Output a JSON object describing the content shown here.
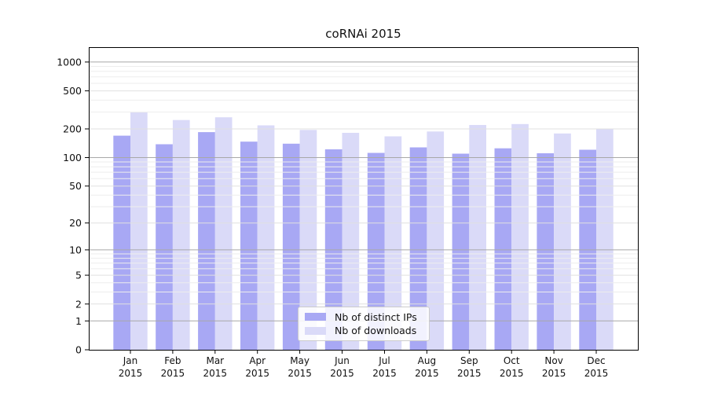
{
  "figure": {
    "background": "#ffffff"
  },
  "chart_data": {
    "type": "bar",
    "title": "coRNAi 2015",
    "categories": [
      {
        "month": "Jan",
        "year": "2015"
      },
      {
        "month": "Feb",
        "year": "2015"
      },
      {
        "month": "Mar",
        "year": "2015"
      },
      {
        "month": "Apr",
        "year": "2015"
      },
      {
        "month": "May",
        "year": "2015"
      },
      {
        "month": "Jun",
        "year": "2015"
      },
      {
        "month": "Jul",
        "year": "2015"
      },
      {
        "month": "Aug",
        "year": "2015"
      },
      {
        "month": "Sep",
        "year": "2015"
      },
      {
        "month": "Oct",
        "year": "2015"
      },
      {
        "month": "Nov",
        "year": "2015"
      },
      {
        "month": "Dec",
        "year": "2015"
      }
    ],
    "series": [
      {
        "name": "Nb of distinct IPs",
        "color": "#a8a8f4",
        "values": [
          170,
          138,
          185,
          147,
          140,
          122,
          112,
          128,
          110,
          125,
          111,
          121
        ]
      },
      {
        "name": "Nb of downloads",
        "color": "#dadaf8",
        "values": [
          300,
          248,
          265,
          218,
          195,
          182,
          167,
          188,
          220,
          225,
          179,
          200
        ]
      }
    ],
    "y_axis": {
      "scale": "log1p",
      "ticks": [
        1000,
        500,
        200,
        100,
        50,
        20,
        10,
        5,
        2,
        1,
        0
      ],
      "ylim": [
        0,
        1430
      ]
    },
    "x_axis": {
      "tick_label_lines": 2
    },
    "legend": {
      "position": "lower-center"
    },
    "grid": {
      "horizontal": true,
      "vertical": false,
      "decade_line_color": "#a8a8a8",
      "labeled_line_color": "#e0e0e0",
      "minor_line_color": "#ededed"
    }
  }
}
